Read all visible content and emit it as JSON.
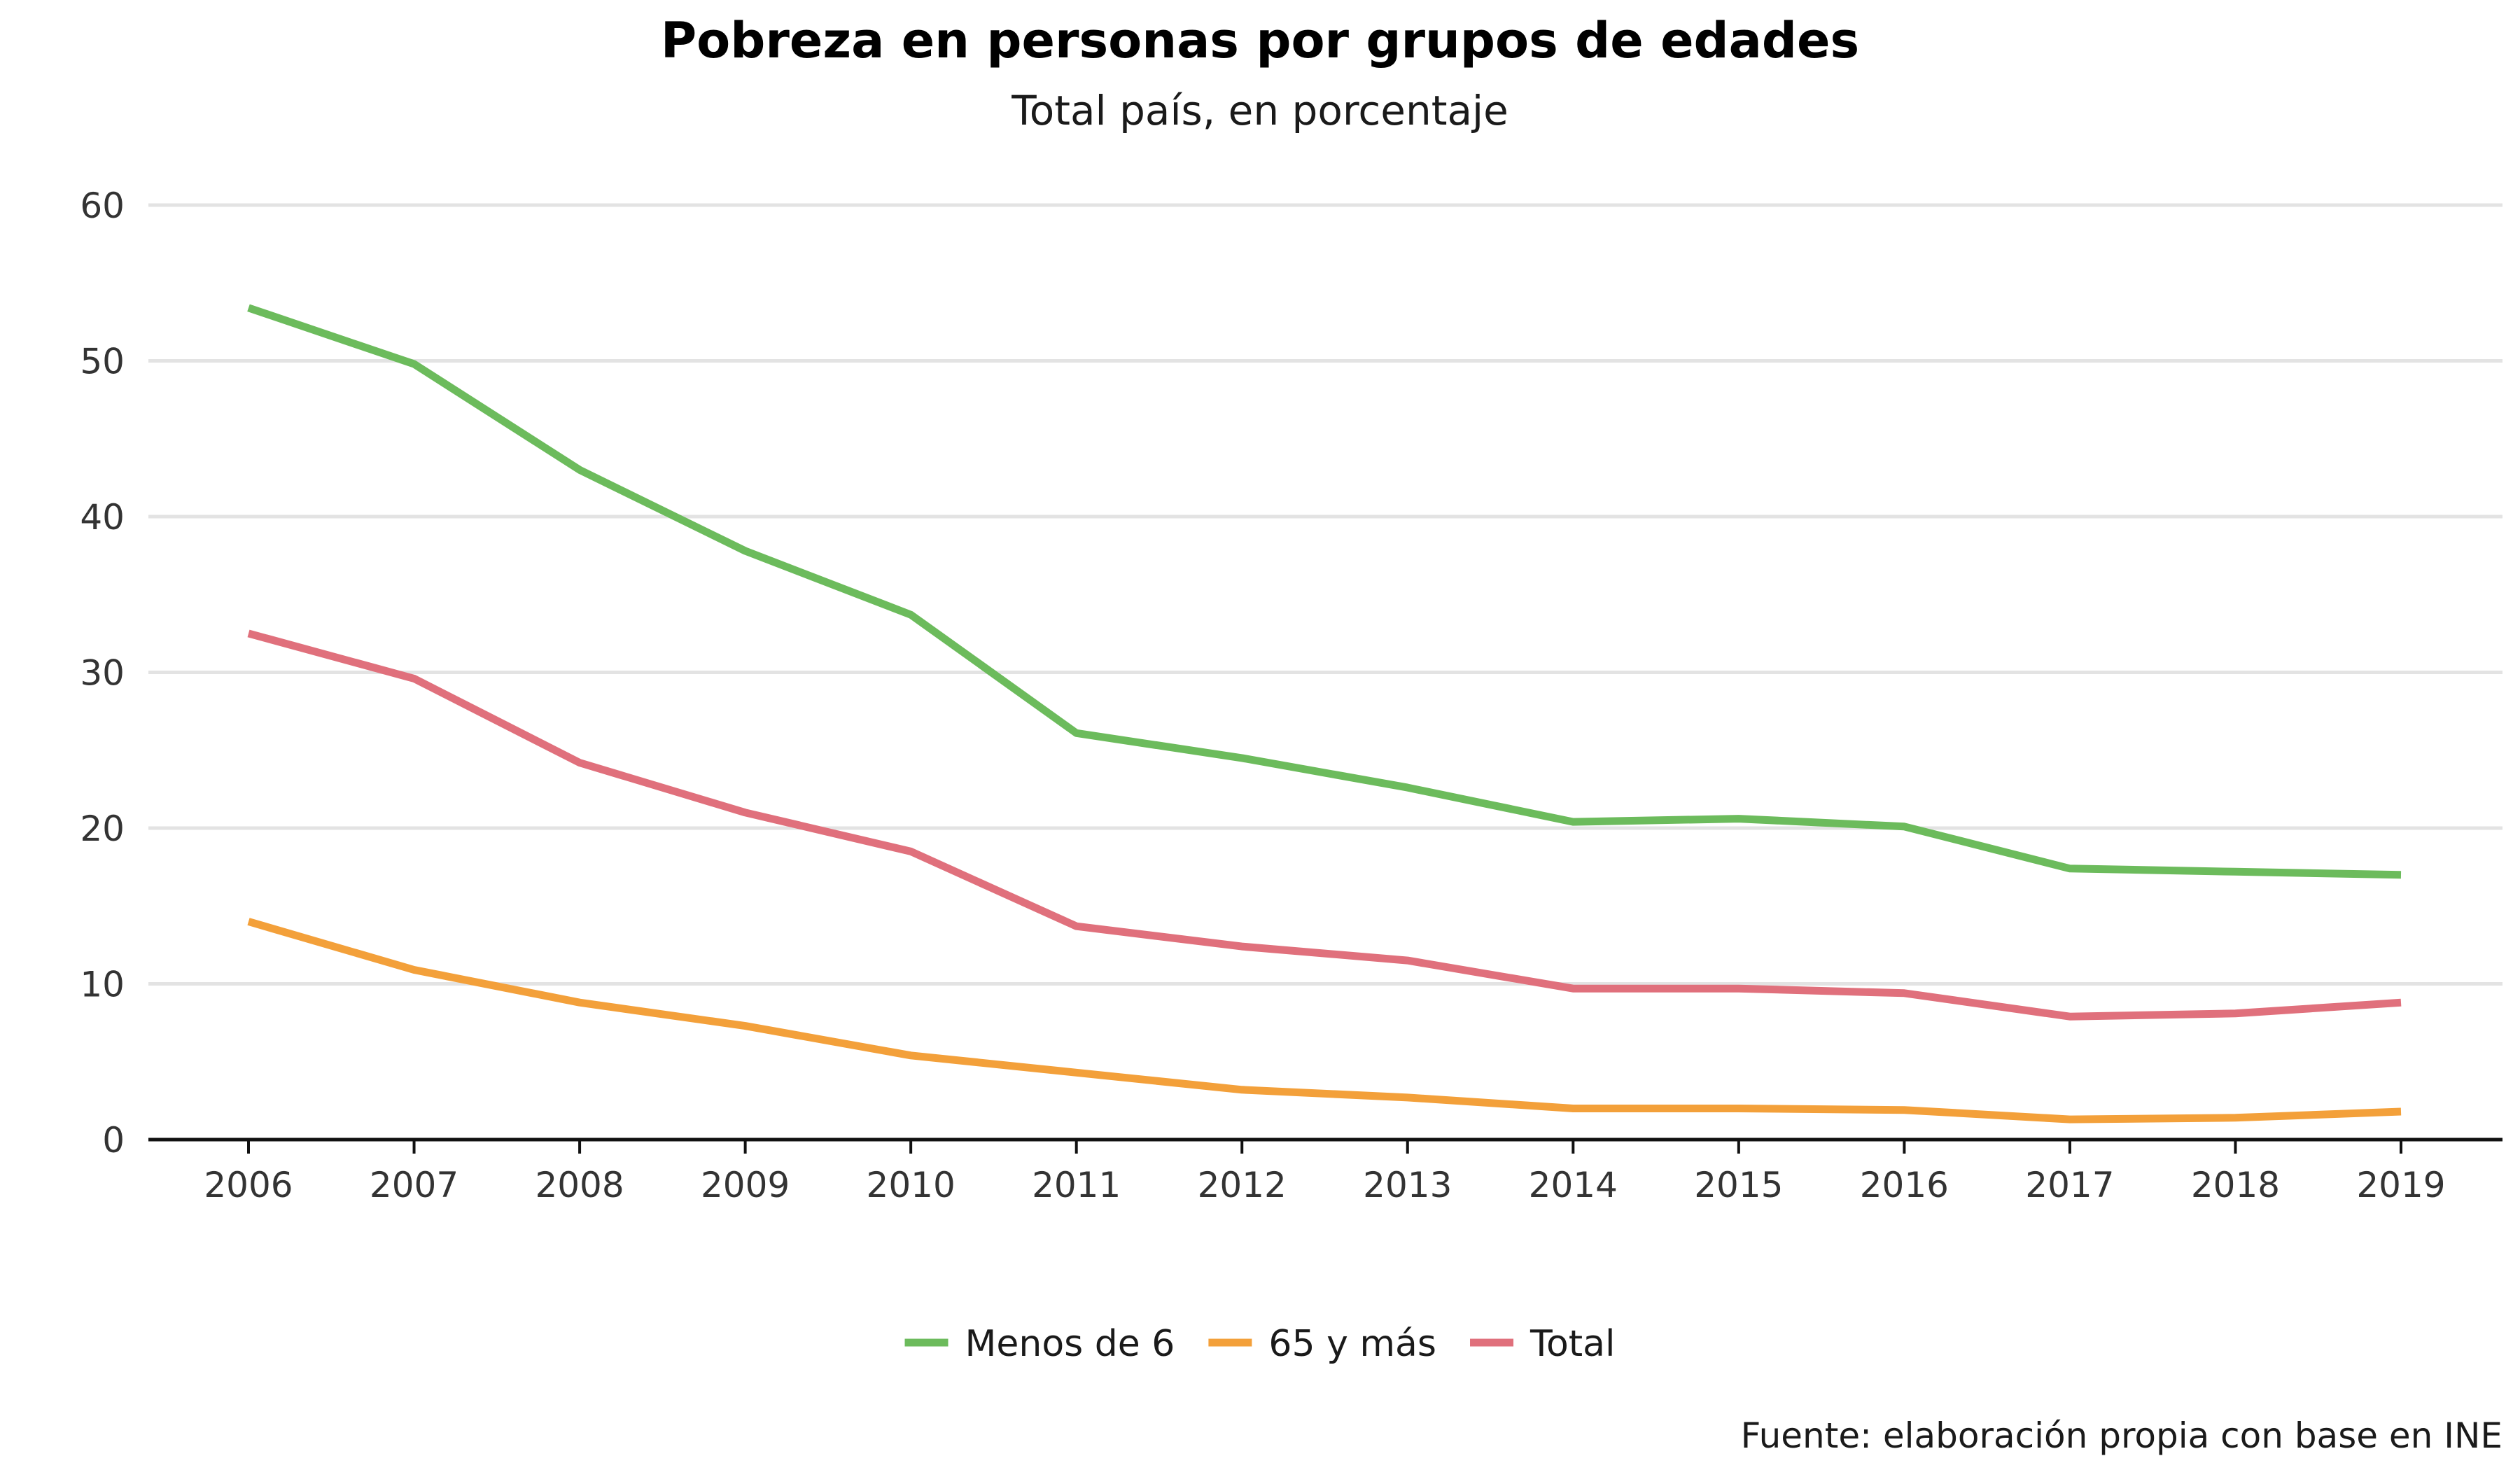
{
  "chart_data": {
    "type": "line",
    "title": "Pobreza en personas por grupos de edades",
    "subtitle": "Total país, en porcentaje",
    "caption": "Fuente: elaboración propia con base en INE",
    "xlabel": "",
    "ylabel": "",
    "ylim": [
      0,
      60
    ],
    "y_ticks": [
      0,
      10,
      20,
      30,
      40,
      50,
      60
    ],
    "grid": true,
    "legend_position": "bottom",
    "x": [
      2006,
      2007,
      2008,
      2009,
      2010,
      2011,
      2012,
      2013,
      2014,
      2015,
      2016,
      2017,
      2018,
      2019
    ],
    "series": [
      {
        "name": "Menos de 6",
        "color": "#6cbb5c",
        "values": [
          53.4,
          49.8,
          43.0,
          37.8,
          33.7,
          26.1,
          24.5,
          22.6,
          20.4,
          20.6,
          20.1,
          17.4,
          17.2,
          17.0
        ]
      },
      {
        "name": "65 y más",
        "color": "#f3a03a",
        "values": [
          14.0,
          10.9,
          8.8,
          7.3,
          5.4,
          4.3,
          3.2,
          2.7,
          2.0,
          2.0,
          1.9,
          1.3,
          1.4,
          1.8
        ]
      },
      {
        "name": "Total",
        "color": "#e0707c",
        "values": [
          32.5,
          29.6,
          24.2,
          21.0,
          18.5,
          13.7,
          12.4,
          11.5,
          9.7,
          9.7,
          9.4,
          7.9,
          8.1,
          8.8
        ]
      }
    ]
  }
}
